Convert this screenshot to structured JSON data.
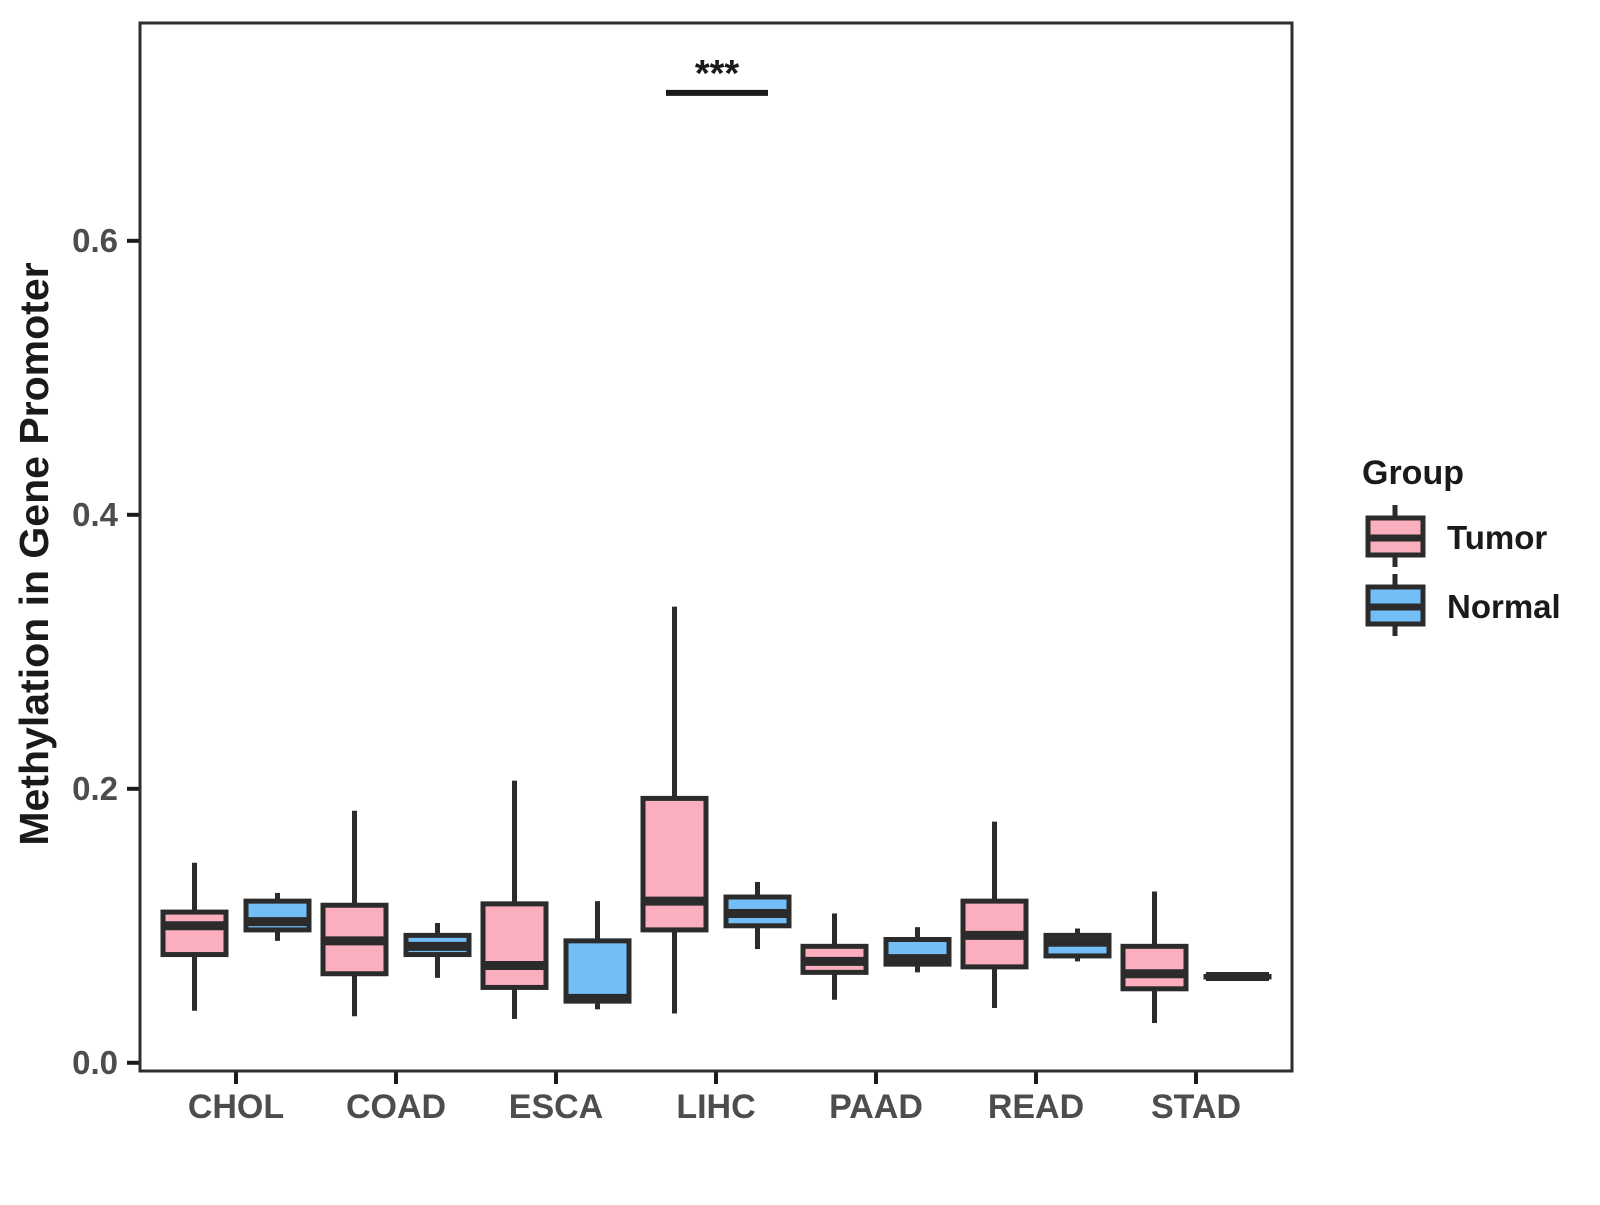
{
  "figure": {
    "background": "#ffffff"
  },
  "chart_data": {
    "type": "boxplot",
    "title": "",
    "xlabel": "",
    "ylabel": "Methylation in Gene Promoter",
    "ylim": [
      -0.006,
      0.759
    ],
    "yticks": [
      0,
      0.2,
      0.4,
      0.6
    ],
    "categories": [
      "CHOL",
      "COAD",
      "ESCA",
      "LIHC",
      "PAAD",
      "READ",
      "STAD"
    ],
    "grid": "off",
    "panel_border": true,
    "colors": {
      "tumor_fill": "#faaebe",
      "normal_fill": "#73bef7",
      "box_stroke": "#2b2b2b",
      "axis_text": "#4d4d4d",
      "text": "#1a1a1a"
    },
    "legend": {
      "title": "Group",
      "position": "right",
      "entries": [
        {
          "label": "Tumor",
          "color": "#faaebe"
        },
        {
          "label": "Normal",
          "color": "#73bef7"
        }
      ]
    },
    "series": [
      {
        "name": "Tumor",
        "color": "#faaebe",
        "boxes": [
          {
            "category": "CHOL",
            "min": 0.038,
            "q1": 0.079,
            "med": 0.1,
            "q3": 0.11,
            "max": 0.146
          },
          {
            "category": "COAD",
            "min": 0.034,
            "q1": 0.065,
            "med": 0.089,
            "q3": 0.115,
            "max": 0.184
          },
          {
            "category": "ESCA",
            "min": 0.032,
            "q1": 0.055,
            "med": 0.071,
            "q3": 0.116,
            "max": 0.206
          },
          {
            "category": "LIHC",
            "min": 0.036,
            "q1": 0.097,
            "med": 0.118,
            "q3": 0.193,
            "max": 0.333
          },
          {
            "category": "PAAD",
            "min": 0.046,
            "q1": 0.066,
            "med": 0.074,
            "q3": 0.085,
            "max": 0.109
          },
          {
            "category": "READ",
            "min": 0.04,
            "q1": 0.07,
            "med": 0.093,
            "q3": 0.118,
            "max": 0.176
          },
          {
            "category": "STAD",
            "min": 0.029,
            "q1": 0.054,
            "med": 0.065,
            "q3": 0.085,
            "max": 0.125
          }
        ]
      },
      {
        "name": "Normal",
        "color": "#73bef7",
        "boxes": [
          {
            "category": "CHOL",
            "min": 0.089,
            "q1": 0.097,
            "med": 0.103,
            "q3": 0.118,
            "max": 0.124
          },
          {
            "category": "COAD",
            "min": 0.062,
            "q1": 0.079,
            "med": 0.085,
            "q3": 0.093,
            "max": 0.102
          },
          {
            "category": "ESCA",
            "min": 0.039,
            "q1": 0.045,
            "med": 0.047,
            "q3": 0.089,
            "max": 0.118
          },
          {
            "category": "LIHC",
            "min": 0.083,
            "q1": 0.1,
            "med": 0.109,
            "q3": 0.121,
            "max": 0.132
          },
          {
            "category": "PAAD",
            "min": 0.066,
            "q1": 0.072,
            "med": 0.076,
            "q3": 0.09,
            "max": 0.099
          },
          {
            "category": "READ",
            "min": 0.074,
            "q1": 0.078,
            "med": 0.088,
            "q3": 0.093,
            "max": 0.098
          },
          {
            "category": "STAD",
            "min": 0.063,
            "q1": 0.063,
            "med": 0.063,
            "q3": 0.063,
            "max": 0.063
          }
        ]
      }
    ],
    "annotation": {
      "text": "***",
      "category": "LIHC",
      "y_line": 0.708
    }
  }
}
